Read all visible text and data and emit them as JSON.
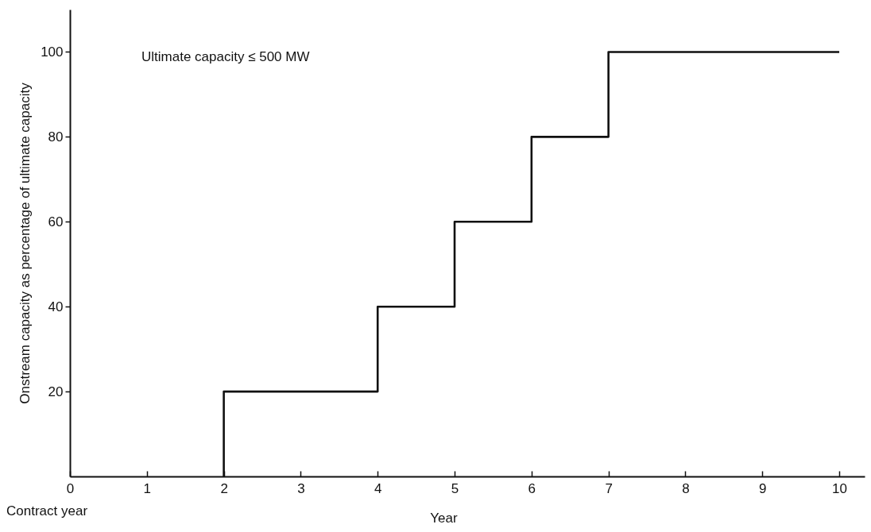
{
  "chart_data": {
    "type": "step",
    "xlabel": "Year",
    "ylabel": "Onstream capacity as percentage of ultimate capacity",
    "annotations": [
      "Ultimate capacity ≤ 500 MW",
      "Contract year"
    ],
    "x": [
      2,
      2,
      4,
      5,
      6,
      7,
      10
    ],
    "series": [
      {
        "color": "#111111",
        "values": [
          0,
          20,
          40,
          60,
          80,
          100,
          100
        ]
      }
    ],
    "xlim": [
      0,
      10.33
    ],
    "xticks": [
      0,
      1,
      2,
      3,
      4,
      5,
      6,
      7,
      8,
      9,
      10
    ],
    "ylim": [
      0,
      110
    ],
    "yticks": [
      20,
      40,
      60,
      80,
      100
    ],
    "grid": false,
    "marker": "none",
    "line_style": "solid"
  }
}
